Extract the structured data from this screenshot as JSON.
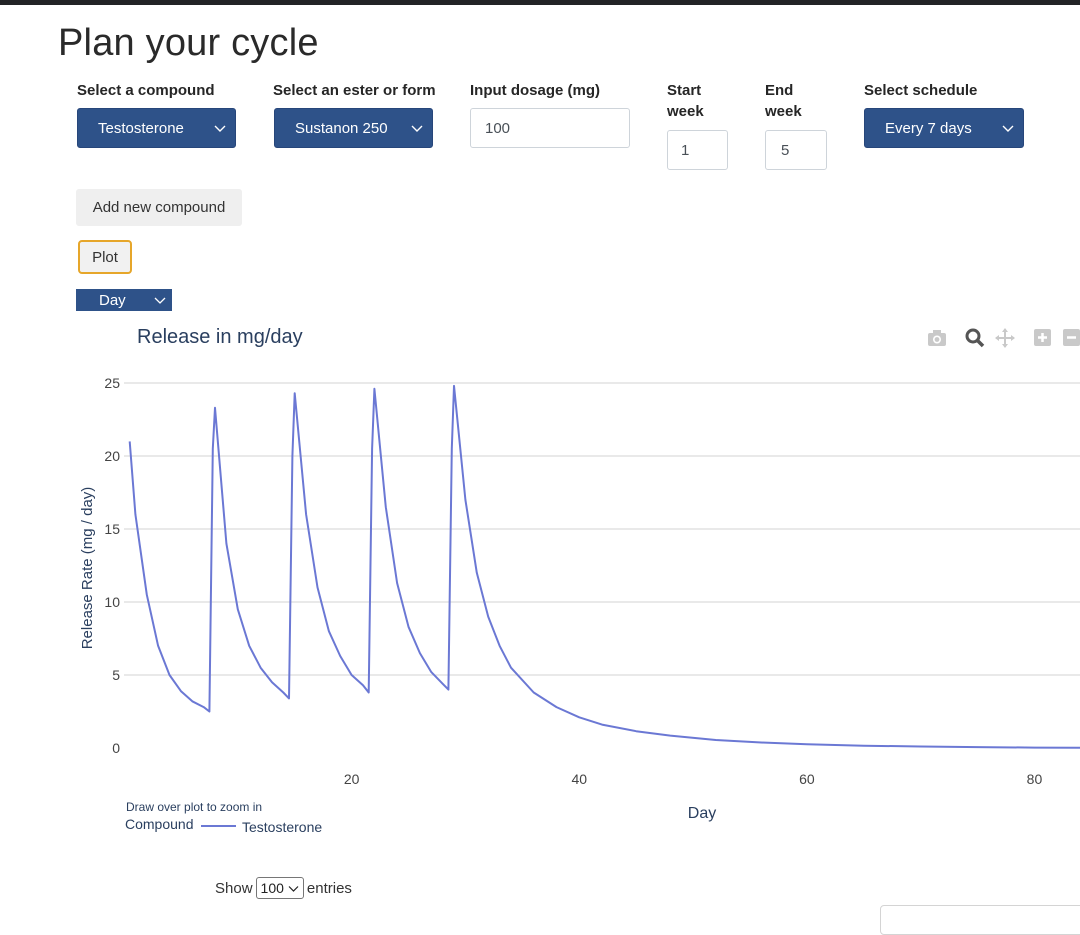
{
  "page": {
    "title": "Plan your cycle"
  },
  "form": {
    "compound_label": "Select a compound",
    "compound_value": "Testosterone",
    "ester_label": "Select an ester or form",
    "ester_value": "Sustanon 250",
    "dosage_label": "Input dosage (mg)",
    "dosage_value": "100",
    "start_label_line1": "Start",
    "start_label_line2": "week",
    "start_value": "1",
    "end_label_line1": "End",
    "end_label_line2": "week",
    "end_value": "5",
    "schedule_label": "Select schedule",
    "schedule_value": "Every 7 days"
  },
  "buttons": {
    "add_compound": "Add new compound",
    "plot": "Plot"
  },
  "unit_select": {
    "value": "Day"
  },
  "toolbar": {
    "icons": [
      "camera-icon",
      "zoom-icon",
      "pan-icon",
      "zoom-in-icon",
      "zoom-out-icon"
    ]
  },
  "chart_data": {
    "type": "line",
    "title": "Release in mg/day",
    "xlabel": "Day",
    "ylabel": "Release Rate (mg / day)",
    "xlim": [
      0,
      84
    ],
    "ylim": [
      0,
      25
    ],
    "xticks": [
      20,
      40,
      60,
      80
    ],
    "yticks": [
      0,
      5,
      10,
      15,
      20,
      25
    ],
    "grid": true,
    "hint": "Draw over plot to zoom in",
    "legend_title": "Compound",
    "series": [
      {
        "name": "Testosterone",
        "color": "#6b78d4",
        "x": [
          0.5,
          1,
          2,
          3,
          4,
          5,
          6,
          7,
          7.5,
          7.8,
          8,
          9,
          10,
          11,
          12,
          13,
          14,
          14.5,
          14.8,
          15,
          16,
          17,
          18,
          19,
          20,
          21,
          21.5,
          21.8,
          22,
          23,
          24,
          25,
          26,
          27,
          28,
          28.5,
          28.8,
          29,
          30,
          31,
          32,
          33,
          34,
          36,
          38,
          40,
          42,
          45,
          48,
          52,
          56,
          60,
          65,
          70,
          75,
          80,
          84
        ],
        "y": [
          21,
          16,
          10.5,
          7,
          5,
          3.9,
          3.2,
          2.8,
          2.5,
          20.5,
          23.3,
          14,
          9.5,
          7,
          5.5,
          4.5,
          3.8,
          3.4,
          20,
          24.3,
          16,
          11,
          8,
          6.3,
          5,
          4.3,
          3.8,
          20.5,
          24.6,
          16.5,
          11.3,
          8.3,
          6.5,
          5.2,
          4.4,
          4.0,
          20.5,
          24.8,
          17,
          12,
          9,
          7,
          5.5,
          3.8,
          2.8,
          2.1,
          1.6,
          1.15,
          0.85,
          0.55,
          0.38,
          0.26,
          0.16,
          0.1,
          0.06,
          0.03,
          0.02
        ]
      }
    ]
  },
  "table_controls": {
    "show_label": "Show",
    "page_size": "100",
    "entries_label": "entries"
  }
}
